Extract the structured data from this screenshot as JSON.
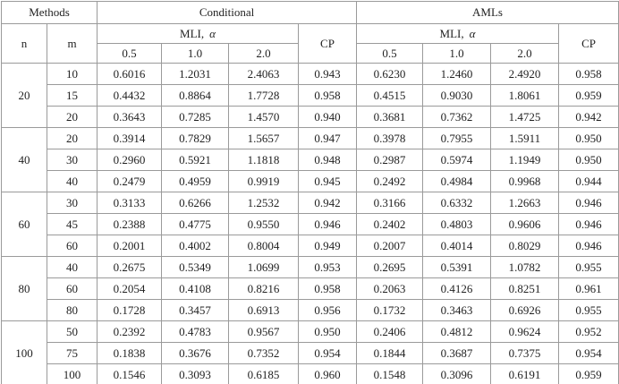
{
  "header": {
    "methods": "Methods",
    "conditional": "Conditional",
    "amls": "AMLs",
    "n": "n",
    "m": "m",
    "mli": "MLI,",
    "alpha": "α",
    "cp": "CP",
    "alphas": [
      "0.5",
      "1.0",
      "2.0"
    ]
  },
  "groups": [
    {
      "n": "20",
      "rows": [
        [
          "10",
          "0.6016",
          "1.2031",
          "2.4063",
          "0.943",
          "0.6230",
          "1.2460",
          "2.4920",
          "0.958"
        ],
        [
          "15",
          "0.4432",
          "0.8864",
          "1.7728",
          "0.958",
          "0.4515",
          "0.9030",
          "1.8061",
          "0.959"
        ],
        [
          "20",
          "0.3643",
          "0.7285",
          "1.4570",
          "0.940",
          "0.3681",
          "0.7362",
          "1.4725",
          "0.942"
        ]
      ]
    },
    {
      "n": "40",
      "rows": [
        [
          "20",
          "0.3914",
          "0.7829",
          "1.5657",
          "0.947",
          "0.3978",
          "0.7955",
          "1.5911",
          "0.950"
        ],
        [
          "30",
          "0.2960",
          "0.5921",
          "1.1818",
          "0.948",
          "0.2987",
          "0.5974",
          "1.1949",
          "0.950"
        ],
        [
          "40",
          "0.2479",
          "0.4959",
          "0.9919",
          "0.945",
          "0.2492",
          "0.4984",
          "0.9968",
          "0.944"
        ]
      ]
    },
    {
      "n": "60",
      "rows": [
        [
          "30",
          "0.3133",
          "0.6266",
          "1.2532",
          "0.942",
          "0.3166",
          "0.6332",
          "1.2663",
          "0.946"
        ],
        [
          "45",
          "0.2388",
          "0.4775",
          "0.9550",
          "0.946",
          "0.2402",
          "0.4803",
          "0.9606",
          "0.946"
        ],
        [
          "60",
          "0.2001",
          "0.4002",
          "0.8004",
          "0.949",
          "0.2007",
          "0.4014",
          "0.8029",
          "0.946"
        ]
      ]
    },
    {
      "n": "80",
      "rows": [
        [
          "40",
          "0.2675",
          "0.5349",
          "1.0699",
          "0.953",
          "0.2695",
          "0.5391",
          "1.0782",
          "0.955"
        ],
        [
          "60",
          "0.2054",
          "0.4108",
          "0.8216",
          "0.958",
          "0.2063",
          "0.4126",
          "0.8251",
          "0.961"
        ],
        [
          "80",
          "0.1728",
          "0.3457",
          "0.6913",
          "0.956",
          "0.1732",
          "0.3463",
          "0.6926",
          "0.955"
        ]
      ]
    },
    {
      "n": "100",
      "rows": [
        [
          "50",
          "0.2392",
          "0.4783",
          "0.9567",
          "0.950",
          "0.2406",
          "0.4812",
          "0.9624",
          "0.952"
        ],
        [
          "75",
          "0.1838",
          "0.3676",
          "0.7352",
          "0.954",
          "0.1844",
          "0.3687",
          "0.7375",
          "0.954"
        ],
        [
          "100",
          "0.1546",
          "0.3093",
          "0.6185",
          "0.960",
          "0.1548",
          "0.3096",
          "0.6191",
          "0.959"
        ]
      ]
    }
  ]
}
